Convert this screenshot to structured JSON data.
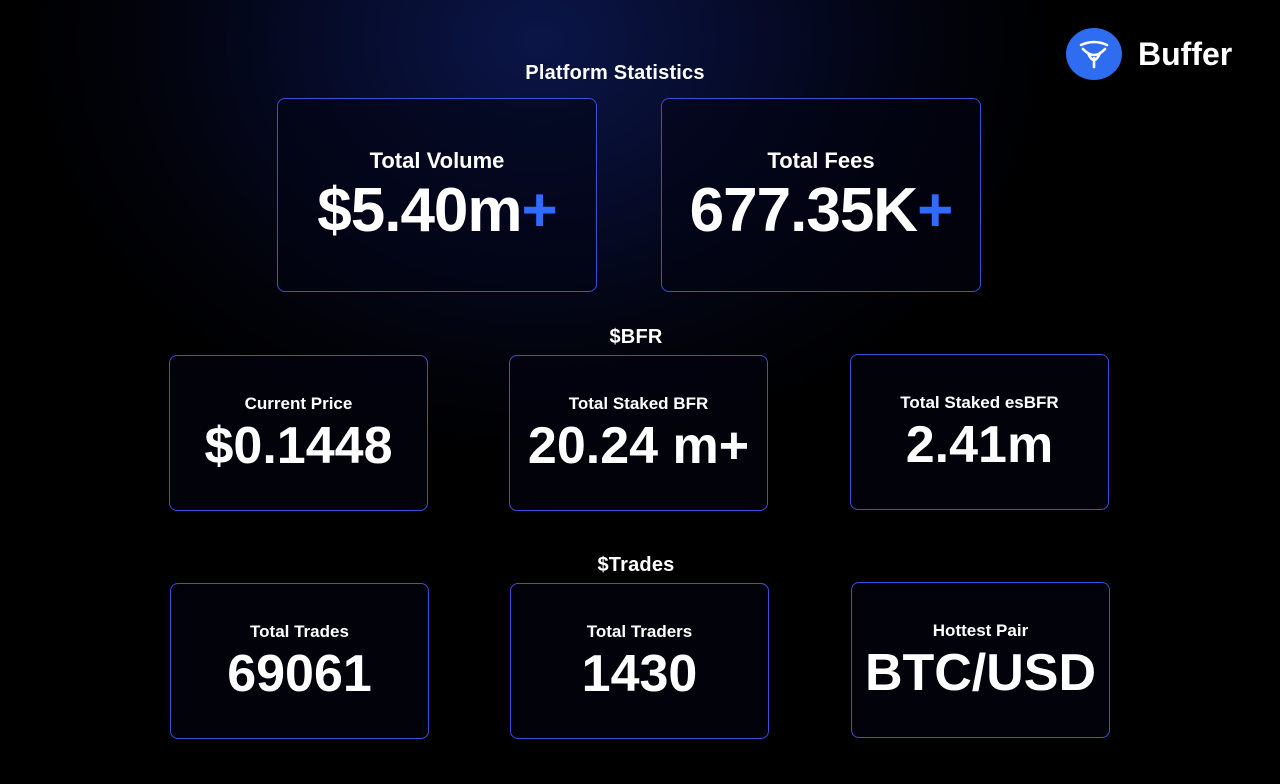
{
  "brand": {
    "name": "Buffer",
    "accent": "#2e6df0"
  },
  "platform": {
    "title": "Platform Statistics",
    "cards": [
      {
        "label": "Total Volume",
        "value": "$5.40m",
        "suffix": "+"
      },
      {
        "label": "Total Fees",
        "value": "677.35K",
        "suffix": "+"
      }
    ]
  },
  "bfr": {
    "title": "$BFR",
    "cards": [
      {
        "label": "Current Price",
        "value": "$0.1448"
      },
      {
        "label": "Total Staked BFR",
        "value": "20.24 m+"
      },
      {
        "label": "Total Staked esBFR",
        "value": "2.41m"
      }
    ]
  },
  "trades": {
    "title": "$Trades",
    "cards": [
      {
        "label": "Total Trades",
        "value": "69061"
      },
      {
        "label": "Total Traders",
        "value": "1430"
      },
      {
        "label": "Hottest Pair",
        "value": "BTC/USD"
      }
    ]
  },
  "colors": {
    "card_border": "#3b4fd8",
    "plus": "#2f6bff",
    "background": "#000000"
  }
}
